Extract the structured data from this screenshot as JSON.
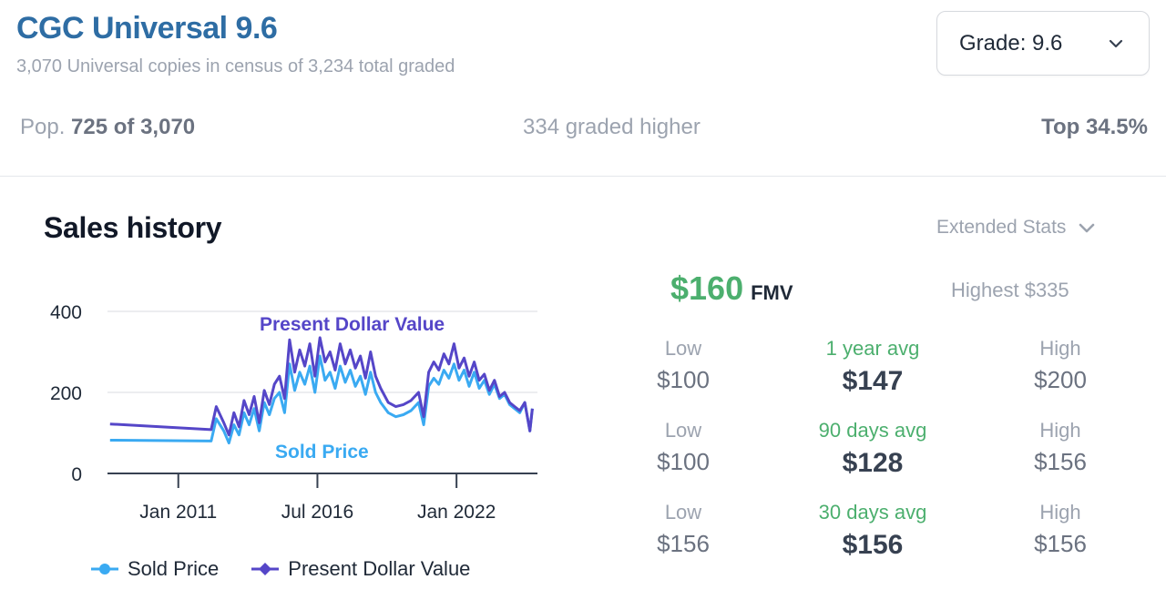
{
  "header": {
    "title": "CGC Universal 9.6",
    "subtitle": "3,070 Universal copies in census of 3,234 total graded",
    "grade_select": "Grade: 9.6"
  },
  "population": {
    "pop_label": "Pop.",
    "pop_value": "725 of 3,070",
    "graded_higher": "334 graded higher",
    "top_percent": "Top 34.5%"
  },
  "sales": {
    "title": "Sales history",
    "extended_stats": "Extended Stats"
  },
  "fmv": {
    "value": "$160",
    "label": "FMV",
    "highest": "Highest $335"
  },
  "stats": [
    {
      "low_label": "Low",
      "low": "$100",
      "avg_label": "1 year avg",
      "avg": "$147",
      "high_label": "High",
      "high": "$200"
    },
    {
      "low_label": "Low",
      "low": "$100",
      "avg_label": "90 days avg",
      "avg": "$128",
      "high_label": "High",
      "high": "$156"
    },
    {
      "low_label": "Low",
      "low": "$156",
      "avg_label": "30 days avg",
      "avg": "$156",
      "high_label": "High",
      "high": "$156"
    }
  ],
  "colors": {
    "sold": "#3aaaf2",
    "present": "#5546c8",
    "fmv_green": "#4caf6e",
    "title_blue": "#2e6da4"
  },
  "chart_data": {
    "type": "line",
    "title": "",
    "xlabel": "",
    "ylabel": "",
    "ylim": [
      0,
      400
    ],
    "yticks": [
      0,
      200,
      400
    ],
    "xlim": [
      2008.2,
      2025.2
    ],
    "xticks": [
      {
        "x": 2011.0,
        "label": "Jan 2011"
      },
      {
        "x": 2016.5,
        "label": "Jul 2016"
      },
      {
        "x": 2022.0,
        "label": "Jan 2022"
      }
    ],
    "grid": true,
    "legend": "bottom",
    "series": [
      {
        "name": "Sold Price",
        "inline_label": "Sold Price",
        "color": "#3aaaf2",
        "x": [
          2008.3,
          2012.3,
          2012.5,
          2012.8,
          2013.0,
          2013.2,
          2013.4,
          2013.6,
          2013.8,
          2014.0,
          2014.2,
          2014.4,
          2014.6,
          2014.8,
          2015.0,
          2015.2,
          2015.4,
          2015.6,
          2015.8,
          2016.0,
          2016.2,
          2016.4,
          2016.6,
          2016.8,
          2017.0,
          2017.2,
          2017.4,
          2017.6,
          2017.8,
          2018.0,
          2018.2,
          2018.4,
          2018.6,
          2018.8,
          2019.0,
          2019.3,
          2019.6,
          2019.9,
          2020.2,
          2020.5,
          2020.7,
          2020.9,
          2021.1,
          2021.3,
          2021.5,
          2021.7,
          2021.9,
          2022.1,
          2022.3,
          2022.5,
          2022.7,
          2022.9,
          2023.1,
          2023.3,
          2023.5,
          2023.7,
          2023.9,
          2024.1,
          2024.3,
          2024.5,
          2024.7,
          2024.9,
          2025.0
        ],
        "values": [
          82,
          80,
          135,
          105,
          75,
          120,
          95,
          150,
          120,
          160,
          105,
          175,
          145,
          185,
          200,
          150,
          270,
          205,
          250,
          220,
          265,
          200,
          290,
          230,
          250,
          210,
          265,
          225,
          255,
          215,
          240,
          195,
          250,
          200,
          175,
          150,
          140,
          145,
          155,
          175,
          120,
          215,
          235,
          220,
          255,
          235,
          270,
          230,
          255,
          215,
          250,
          210,
          230,
          195,
          220,
          185,
          195,
          170,
          160,
          150,
          175,
          105,
          160
        ]
      },
      {
        "name": "Present Dollar Value",
        "inline_label": "Present Dollar Value",
        "color": "#5546c8",
        "x": [
          2008.3,
          2012.3,
          2012.5,
          2012.8,
          2013.0,
          2013.2,
          2013.4,
          2013.6,
          2013.8,
          2014.0,
          2014.2,
          2014.4,
          2014.6,
          2014.8,
          2015.0,
          2015.2,
          2015.4,
          2015.6,
          2015.8,
          2016.0,
          2016.2,
          2016.4,
          2016.6,
          2016.8,
          2017.0,
          2017.2,
          2017.4,
          2017.6,
          2017.8,
          2018.0,
          2018.2,
          2018.4,
          2018.6,
          2018.8,
          2019.0,
          2019.3,
          2019.6,
          2019.9,
          2020.2,
          2020.5,
          2020.7,
          2020.9,
          2021.1,
          2021.3,
          2021.5,
          2021.7,
          2021.9,
          2022.1,
          2022.3,
          2022.5,
          2022.7,
          2022.9,
          2023.1,
          2023.3,
          2023.5,
          2023.7,
          2023.9,
          2024.1,
          2024.3,
          2024.5,
          2024.7,
          2024.9,
          2025.0
        ],
        "values": [
          122,
          108,
          165,
          125,
          95,
          150,
          115,
          180,
          145,
          190,
          125,
          205,
          170,
          220,
          240,
          185,
          330,
          250,
          305,
          265,
          320,
          240,
          335,
          275,
          300,
          255,
          320,
          270,
          305,
          260,
          290,
          235,
          300,
          240,
          210,
          175,
          165,
          170,
          180,
          200,
          140,
          250,
          275,
          255,
          295,
          270,
          320,
          260,
          285,
          240,
          275,
          230,
          245,
          205,
          230,
          190,
          200,
          175,
          165,
          155,
          175,
          105,
          160
        ]
      }
    ]
  }
}
